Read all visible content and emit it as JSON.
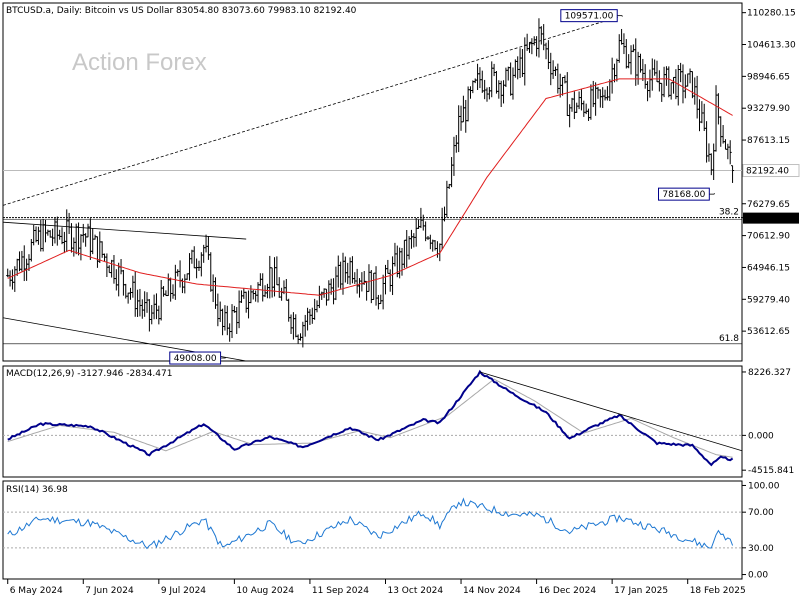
{
  "main_panel": {
    "header": "BTCUSD.a, Daily:  Bitcoin vs US Dollar  83054.80 83073.60 79983.10 82192.40",
    "watermark": "Action Forex",
    "y_ticks": [
      "110280.15",
      "104613.30",
      "98946.65",
      "93279.90",
      "87613.15",
      "82192.40",
      "76279.65",
      "73812.00",
      "70612.90",
      "64946.15",
      "59279.40",
      "53612.65"
    ],
    "y_tick_values": [
      110280.15,
      104613.3,
      98946.65,
      93279.9,
      87613.15,
      82192.4,
      76279.65,
      73812.0,
      70612.9,
      64946.15,
      59279.4,
      53612.65
    ],
    "ylim": [
      48300,
      112000
    ],
    "current_price_label": "82192.40",
    "current_price": 82192.4,
    "level_label": "73812.00",
    "level_value": 73812.0,
    "fib_382_label": "38.2",
    "fib_382_value": 73812.0,
    "fib_618_label": "61.8",
    "fib_618_value": 51350,
    "annotations": [
      {
        "text": "109571.00",
        "value": 109571.0,
        "date": "2025-01-20"
      },
      {
        "text": "78168.00",
        "value": 78168.0,
        "date": "2025-02-28"
      },
      {
        "text": "49008.00",
        "value": 49008.0,
        "date": "2024-08-05"
      }
    ],
    "colors": {
      "bars": "#000000",
      "ma": "#e01e1e",
      "grid_line": "#000000"
    }
  },
  "macd_panel": {
    "header": "MACD(12,26,9) -3127.946 -2834.471",
    "y_ticks": [
      "8226.327",
      "0.000",
      "-4515.841"
    ],
    "y_tick_values": [
      8226.327,
      0,
      -4515.841
    ],
    "ylim": [
      -5400,
      9000
    ],
    "colors": {
      "macd": "#00008b",
      "signal": "#a9a9a9",
      "trend": "#000000"
    }
  },
  "rsi_panel": {
    "header": "RSI(14) 36.98",
    "y_ticks": [
      "100.00",
      "70.00",
      "30.00",
      "0.00"
    ],
    "y_tick_values": [
      100,
      70,
      30,
      0
    ],
    "ylim": [
      -5,
      105
    ],
    "colors": {
      "rsi": "#1e78d2"
    }
  },
  "x_axis": {
    "ticks": [
      "6 May 2024",
      "7 Jun 2024",
      "9 Jul 2024",
      "10 Aug 2024",
      "11 Sep 2024",
      "13 Oct 2024",
      "14 Nov 2024",
      "16 Dec 2024",
      "17 Jan 2025",
      "18 Feb 2025"
    ],
    "tick_dates": [
      "2024-05-06",
      "2024-06-07",
      "2024-07-09",
      "2024-08-10",
      "2024-09-11",
      "2024-10-13",
      "2024-11-14",
      "2024-12-16",
      "2025-01-17",
      "2025-02-18"
    ],
    "xlim": [
      "2024-05-04",
      "2025-03-13"
    ]
  },
  "chart_data": {
    "type": "ohlc",
    "title": "BTCUSD.a, Daily:  Bitcoin vs US Dollar",
    "x_unit": "date",
    "last_ohlc": {
      "open": 83054.8,
      "high": 83073.6,
      "low": 79983.1,
      "close": 82192.4
    },
    "close_keypoints": [
      {
        "date": "2024-05-06",
        "close": 63500
      },
      {
        "date": "2024-05-20",
        "close": 70500
      },
      {
        "date": "2024-06-07",
        "close": 71000
      },
      {
        "date": "2024-06-20",
        "close": 65000
      },
      {
        "date": "2024-07-05",
        "close": 56000
      },
      {
        "date": "2024-07-28",
        "close": 68500
      },
      {
        "date": "2024-08-05",
        "close": 54000
      },
      {
        "date": "2024-08-25",
        "close": 64000
      },
      {
        "date": "2024-09-06",
        "close": 54000
      },
      {
        "date": "2024-09-28",
        "close": 65500
      },
      {
        "date": "2024-10-10",
        "close": 60500
      },
      {
        "date": "2024-10-29",
        "close": 72500
      },
      {
        "date": "2024-11-05",
        "close": 69000
      },
      {
        "date": "2024-11-13",
        "close": 90500
      },
      {
        "date": "2024-11-22",
        "close": 98500
      },
      {
        "date": "2024-12-05",
        "close": 98000
      },
      {
        "date": "2024-12-17",
        "close": 106500
      },
      {
        "date": "2024-12-30",
        "close": 93500
      },
      {
        "date": "2025-01-13",
        "close": 94500
      },
      {
        "date": "2025-01-20",
        "close": 104500
      },
      {
        "date": "2025-02-03",
        "close": 98000
      },
      {
        "date": "2025-02-20",
        "close": 97500
      },
      {
        "date": "2025-02-28",
        "close": 83000
      },
      {
        "date": "2025-03-02",
        "close": 93500
      },
      {
        "date": "2025-03-09",
        "close": 82192.4
      }
    ],
    "ma_keypoints": [
      {
        "date": "2024-05-06",
        "value": 63000
      },
      {
        "date": "2024-06-01",
        "value": 68000
      },
      {
        "date": "2024-07-01",
        "value": 64000
      },
      {
        "date": "2024-07-25",
        "value": 62000
      },
      {
        "date": "2024-08-20",
        "value": 61000
      },
      {
        "date": "2024-09-15",
        "value": 60000
      },
      {
        "date": "2024-10-15",
        "value": 63500
      },
      {
        "date": "2024-11-05",
        "value": 67500
      },
      {
        "date": "2024-11-25",
        "value": 81000
      },
      {
        "date": "2024-12-20",
        "value": 95000
      },
      {
        "date": "2025-01-20",
        "value": 98500
      },
      {
        "date": "2025-02-10",
        "value": 98500
      },
      {
        "date": "2025-03-09",
        "value": 92000
      }
    ],
    "macd_keypoints": [
      {
        "date": "2024-05-06",
        "value": -500
      },
      {
        "date": "2024-05-20",
        "value": 1500
      },
      {
        "date": "2024-06-10",
        "value": 1200
      },
      {
        "date": "2024-07-05",
        "value": -2500
      },
      {
        "date": "2024-07-28",
        "value": 1500
      },
      {
        "date": "2024-08-10",
        "value": -1800
      },
      {
        "date": "2024-08-25",
        "value": -200
      },
      {
        "date": "2024-09-08",
        "value": -1500
      },
      {
        "date": "2024-09-28",
        "value": 1000
      },
      {
        "date": "2024-10-10",
        "value": -600
      },
      {
        "date": "2024-10-29",
        "value": 2000
      },
      {
        "date": "2024-11-05",
        "value": 1600
      },
      {
        "date": "2024-11-22",
        "value": 8226
      },
      {
        "date": "2024-12-05",
        "value": 5600
      },
      {
        "date": "2024-12-20",
        "value": 3000
      },
      {
        "date": "2024-12-30",
        "value": -400
      },
      {
        "date": "2025-01-08",
        "value": 1000
      },
      {
        "date": "2025-01-20",
        "value": 2600
      },
      {
        "date": "2025-02-05",
        "value": -1000
      },
      {
        "date": "2025-02-20",
        "value": -1300
      },
      {
        "date": "2025-02-28",
        "value": -3800
      },
      {
        "date": "2025-03-04",
        "value": -2900
      },
      {
        "date": "2025-03-09",
        "value": -3128
      }
    ],
    "signal_keypoints": [
      {
        "date": "2024-05-06",
        "value": -800
      },
      {
        "date": "2024-05-28",
        "value": 1300
      },
      {
        "date": "2024-06-20",
        "value": 400
      },
      {
        "date": "2024-07-12",
        "value": -2000
      },
      {
        "date": "2024-08-01",
        "value": 500
      },
      {
        "date": "2024-08-18",
        "value": -1200
      },
      {
        "date": "2024-09-12",
        "value": -1000
      },
      {
        "date": "2024-10-02",
        "value": 600
      },
      {
        "date": "2024-10-15",
        "value": -300
      },
      {
        "date": "2024-11-08",
        "value": 2500
      },
      {
        "date": "2024-11-28",
        "value": 7300
      },
      {
        "date": "2024-12-15",
        "value": 4500
      },
      {
        "date": "2025-01-05",
        "value": 300
      },
      {
        "date": "2025-01-25",
        "value": 2200
      },
      {
        "date": "2025-02-12",
        "value": -300
      },
      {
        "date": "2025-03-02",
        "value": -2500
      },
      {
        "date": "2025-03-09",
        "value": -2834
      }
    ],
    "macd_trendline": [
      {
        "date": "2024-11-22",
        "value": 8226
      },
      {
        "date": "2025-03-13",
        "value": -2000
      }
    ],
    "rsi_keypoints": [
      {
        "date": "2024-05-06",
        "value": 44
      },
      {
        "date": "2024-05-20",
        "value": 63
      },
      {
        "date": "2024-06-10",
        "value": 58
      },
      {
        "date": "2024-07-05",
        "value": 31
      },
      {
        "date": "2024-07-28",
        "value": 62
      },
      {
        "date": "2024-08-05",
        "value": 30
      },
      {
        "date": "2024-08-25",
        "value": 57
      },
      {
        "date": "2024-09-06",
        "value": 34
      },
      {
        "date": "2024-09-28",
        "value": 62
      },
      {
        "date": "2024-10-10",
        "value": 43
      },
      {
        "date": "2024-10-29",
        "value": 70
      },
      {
        "date": "2024-11-05",
        "value": 55
      },
      {
        "date": "2024-11-13",
        "value": 82
      },
      {
        "date": "2024-12-05",
        "value": 68
      },
      {
        "date": "2024-12-17",
        "value": 66
      },
      {
        "date": "2024-12-30",
        "value": 48
      },
      {
        "date": "2025-01-20",
        "value": 64
      },
      {
        "date": "2025-02-10",
        "value": 47
      },
      {
        "date": "2025-02-28",
        "value": 30
      },
      {
        "date": "2025-03-02",
        "value": 48
      },
      {
        "date": "2025-03-09",
        "value": 37
      }
    ],
    "trendlines": [
      {
        "from": {
          "date": "2024-05-04",
          "value": 76000
        },
        "to": {
          "date": "2025-01-20",
          "value": 109571
        },
        "style": "dotted"
      },
      {
        "from": {
          "date": "2024-05-04",
          "value": 73000
        },
        "to": {
          "date": "2024-08-15",
          "value": 70000
        },
        "style": "solid"
      },
      {
        "from": {
          "date": "2024-05-04",
          "value": 56000
        },
        "to": {
          "date": "2024-08-15",
          "value": 48300
        },
        "style": "solid"
      }
    ]
  }
}
